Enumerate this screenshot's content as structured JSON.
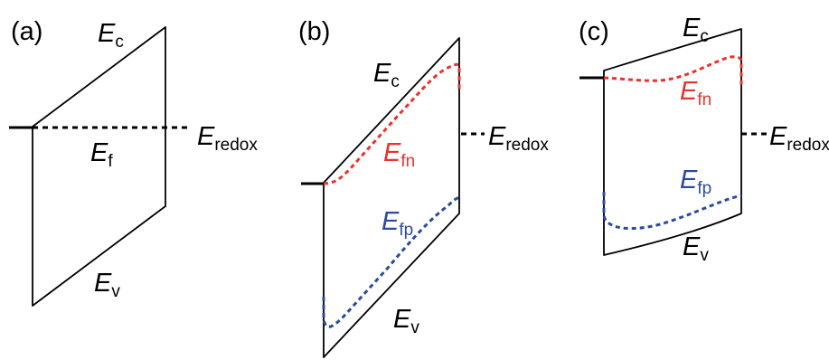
{
  "colors": {
    "line": "#000000",
    "electron_quasi_fermi": "#e8322e",
    "hole_quasi_fermi": "#2b4aa0",
    "background": "#ffffff"
  },
  "panels": [
    {
      "label": "(a)",
      "ec": {
        "main": "E",
        "sub": "c"
      },
      "ev": {
        "main": "E",
        "sub": "v"
      },
      "ef": {
        "main": "E",
        "sub": "f"
      },
      "eredox": {
        "main": "E",
        "sub": "redox"
      }
    },
    {
      "label": "(b)",
      "ec": {
        "main": "E",
        "sub": "c"
      },
      "ev": {
        "main": "E",
        "sub": "v"
      },
      "efn": {
        "main": "E",
        "sub": "fn"
      },
      "efp": {
        "main": "E",
        "sub": "fp"
      },
      "eredox": {
        "main": "E",
        "sub": "redox"
      }
    },
    {
      "label": "(c)",
      "ec": {
        "main": "E",
        "sub": "c"
      },
      "ev": {
        "main": "E",
        "sub": "v"
      },
      "efn": {
        "main": "E",
        "sub": "fn"
      },
      "efp": {
        "main": "E",
        "sub": "fp"
      },
      "eredox": {
        "main": "E",
        "sub": "redox"
      }
    }
  ]
}
